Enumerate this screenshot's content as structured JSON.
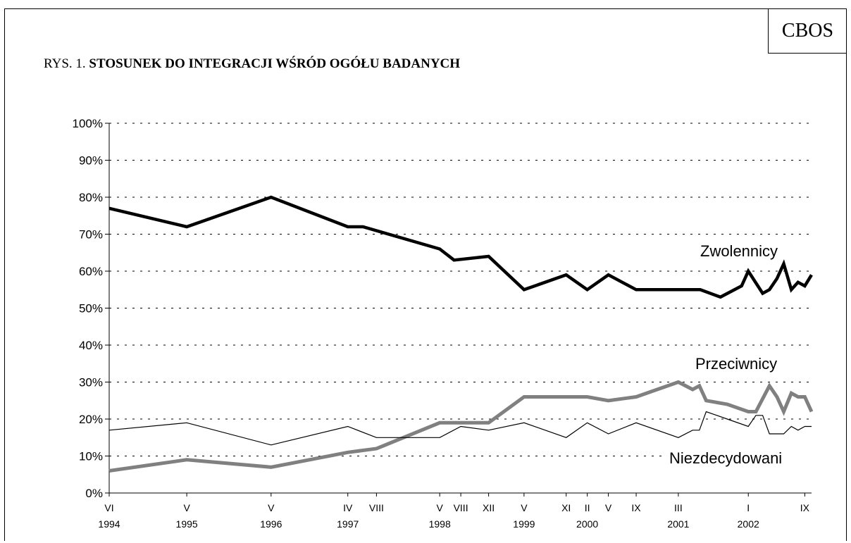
{
  "brand": "CBOS",
  "title_prefix": "RYS. 1.",
  "title_main": "STOSUNEK DO INTEGRACJI WŚRÓD OGÓŁU BADANYCH",
  "chart_data": {
    "type": "line",
    "title": "STOSUNEK DO INTEGRACJI WŚRÓD OGÓŁU BADANYCH",
    "ylim": [
      0,
      100
    ],
    "y_ticks": [
      "0%",
      "10%",
      "20%",
      "30%",
      "40%",
      "50%",
      "60%",
      "70%",
      "80%",
      "90%",
      "100%"
    ],
    "grid": "horizontal dotted",
    "x_tick_labels": [
      {
        "x": 1994.46,
        "month": "VI",
        "year": "1994"
      },
      {
        "x": 1995.38,
        "month": "V",
        "year": "1995"
      },
      {
        "x": 1996.38,
        "month": "V",
        "year": "1996"
      },
      {
        "x": 1997.29,
        "month": "IV",
        "year": "1997"
      },
      {
        "x": 1997.63,
        "month": "VIII",
        "year": ""
      },
      {
        "x": 1998.38,
        "month": "V",
        "year": "1998"
      },
      {
        "x": 1998.63,
        "month": "VIII",
        "year": ""
      },
      {
        "x": 1998.96,
        "month": "XII",
        "year": ""
      },
      {
        "x": 1999.38,
        "month": "V",
        "year": "1999"
      },
      {
        "x": 1999.88,
        "month": "XI",
        "year": ""
      },
      {
        "x": 2000.13,
        "month": "II",
        "year": "2000"
      },
      {
        "x": 2000.38,
        "month": "V",
        "year": ""
      },
      {
        "x": 2000.71,
        "month": "IX",
        "year": ""
      },
      {
        "x": 2001.21,
        "month": "III",
        "year": "2001"
      },
      {
        "x": 2002.04,
        "month": "I",
        "year": "2002"
      },
      {
        "x": 2002.71,
        "month": "IX",
        "year": ""
      }
    ],
    "series": [
      {
        "name": "Zwolennicy",
        "color": "#000000",
        "points": [
          [
            1994.46,
            77
          ],
          [
            1995.38,
            72
          ],
          [
            1996.38,
            80
          ],
          [
            1997.29,
            72
          ],
          [
            1997.47,
            72
          ],
          [
            1998.38,
            66
          ],
          [
            1998.55,
            63
          ],
          [
            1998.96,
            64
          ],
          [
            1999.38,
            55
          ],
          [
            1999.88,
            59
          ],
          [
            2000.13,
            55
          ],
          [
            2000.38,
            59
          ],
          [
            2000.71,
            55
          ],
          [
            2001.21,
            55
          ],
          [
            2001.47,
            55
          ],
          [
            2001.71,
            53
          ],
          [
            2001.96,
            56
          ],
          [
            2002.04,
            60
          ],
          [
            2002.21,
            54
          ],
          [
            2002.29,
            55
          ],
          [
            2002.38,
            58
          ],
          [
            2002.46,
            62
          ],
          [
            2002.55,
            55
          ],
          [
            2002.63,
            57
          ],
          [
            2002.71,
            56
          ],
          [
            2002.79,
            59
          ]
        ]
      },
      {
        "name": "Przeciwnicy",
        "color": "#808080",
        "points": [
          [
            1994.46,
            6
          ],
          [
            1995.38,
            9
          ],
          [
            1996.38,
            7
          ],
          [
            1997.29,
            11
          ],
          [
            1997.63,
            12
          ],
          [
            1998.38,
            19
          ],
          [
            1998.63,
            19
          ],
          [
            1998.96,
            19
          ],
          [
            1999.38,
            26
          ],
          [
            1999.88,
            26
          ],
          [
            2000.13,
            26
          ],
          [
            2000.38,
            25
          ],
          [
            2000.71,
            26
          ],
          [
            2001.21,
            30
          ],
          [
            2001.38,
            28
          ],
          [
            2001.46,
            29
          ],
          [
            2001.54,
            25
          ],
          [
            2001.79,
            24
          ],
          [
            2002.04,
            22
          ],
          [
            2002.13,
            22
          ],
          [
            2002.29,
            29
          ],
          [
            2002.38,
            26
          ],
          [
            2002.46,
            22
          ],
          [
            2002.55,
            27
          ],
          [
            2002.63,
            26
          ],
          [
            2002.71,
            26
          ],
          [
            2002.79,
            22
          ]
        ]
      },
      {
        "name": "Niezdecydowani",
        "color": "#000000",
        "points": [
          [
            1994.46,
            17
          ],
          [
            1995.38,
            19
          ],
          [
            1996.38,
            13
          ],
          [
            1997.29,
            18
          ],
          [
            1997.63,
            15
          ],
          [
            1998.38,
            15
          ],
          [
            1998.63,
            18
          ],
          [
            1998.96,
            17
          ],
          [
            1999.38,
            19
          ],
          [
            1999.88,
            15
          ],
          [
            2000.13,
            19
          ],
          [
            2000.38,
            16
          ],
          [
            2000.71,
            19
          ],
          [
            2001.21,
            15
          ],
          [
            2001.38,
            17
          ],
          [
            2001.46,
            17
          ],
          [
            2001.54,
            22
          ],
          [
            2001.79,
            20
          ],
          [
            2002.04,
            18
          ],
          [
            2002.13,
            21
          ],
          [
            2002.21,
            21
          ],
          [
            2002.29,
            16
          ],
          [
            2002.38,
            16
          ],
          [
            2002.46,
            16
          ],
          [
            2002.55,
            18
          ],
          [
            2002.63,
            17
          ],
          [
            2002.71,
            18
          ],
          [
            2002.79,
            18
          ]
        ]
      }
    ]
  }
}
